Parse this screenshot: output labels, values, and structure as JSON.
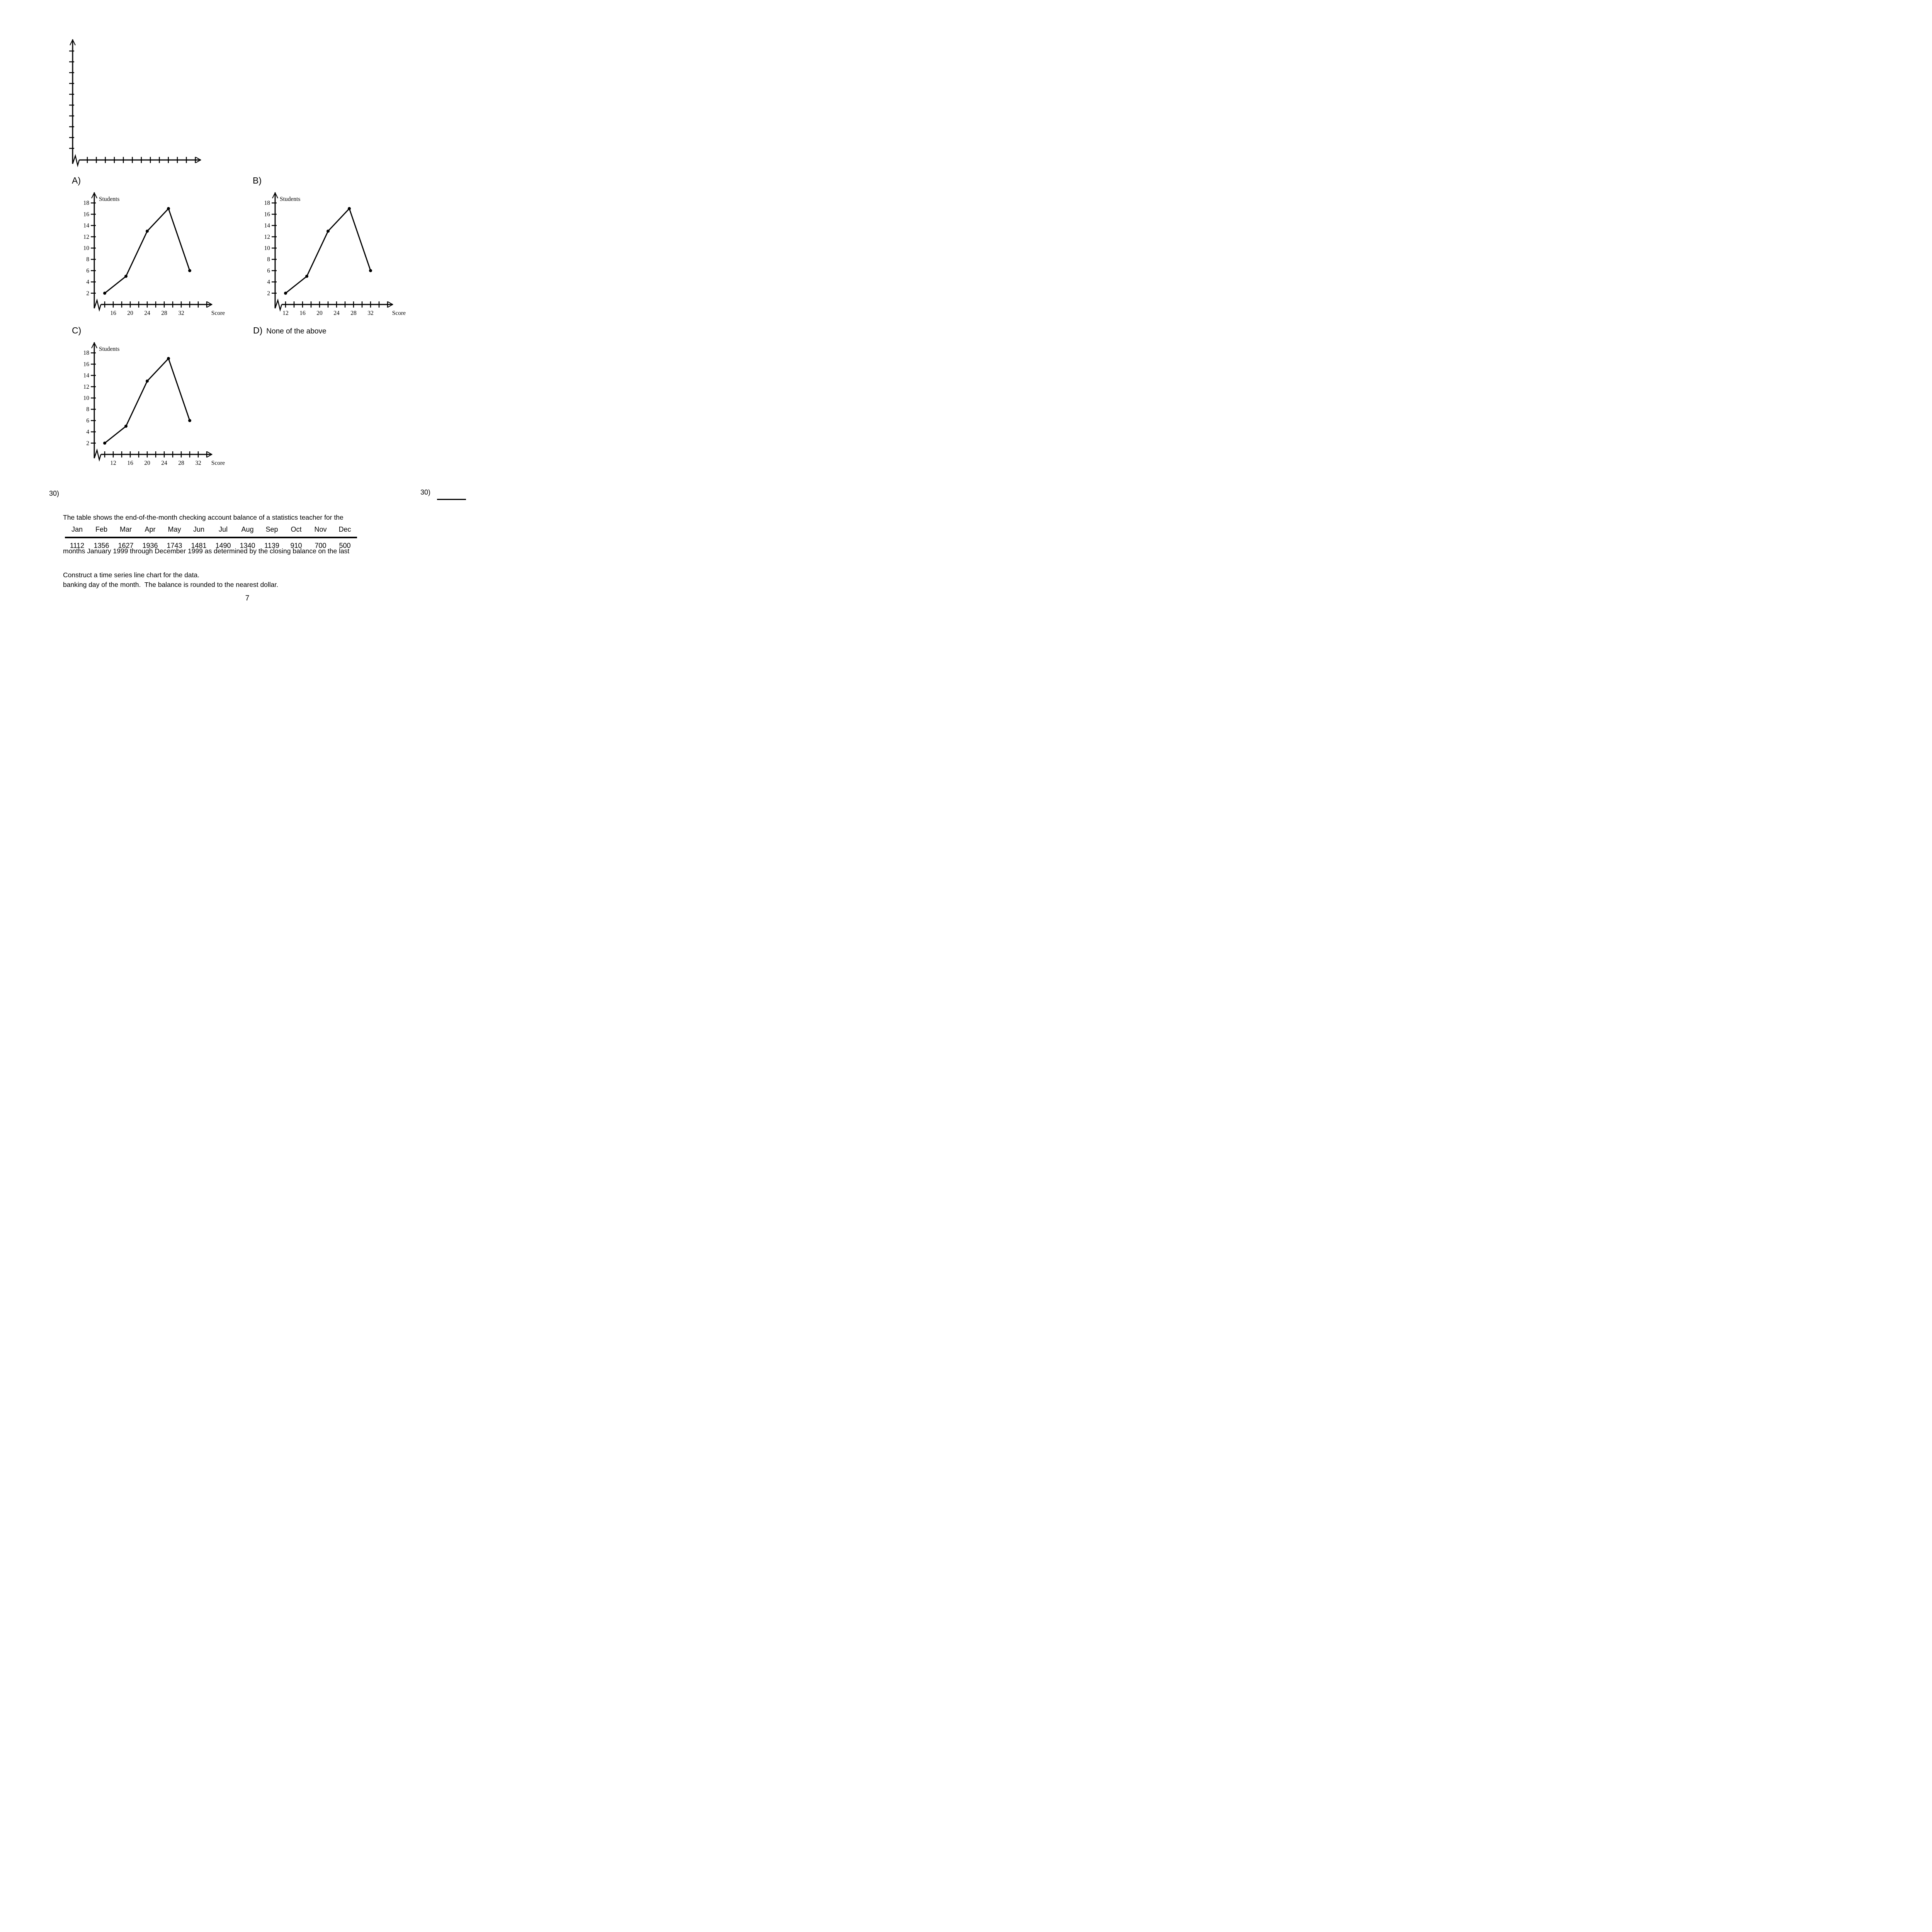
{
  "page_number": "7",
  "options": {
    "a_label": "A)",
    "b_label": "B)",
    "c_label": "C)",
    "d_label": "D)",
    "d_text": "None of the above"
  },
  "question": {
    "number": "30)",
    "answer_slot_number": "30)",
    "lines": [
      "The table shows the end-of-the-month checking account balance of a statistics teacher for the",
      "months January 1999 through December 1999 as determined by the closing balance on the last",
      "banking day of the month.  The balance is rounded to the nearest dollar."
    ],
    "instruction": "Construct a time series line chart for the data."
  },
  "balance_table": {
    "months": [
      "Jan",
      "Feb",
      "Mar",
      "Apr",
      "May",
      "Jun",
      "Jul",
      "Aug",
      "Sep",
      "Oct",
      "Nov",
      "Dec"
    ],
    "balances": [
      "1112",
      "1356",
      "1627",
      "1936",
      "1743",
      "1481",
      "1490",
      "1340",
      "1139",
      "910",
      "700",
      "500"
    ]
  },
  "chart_data": [
    {
      "type": "line",
      "id": "blank-axes",
      "x": [],
      "y": [],
      "x_axis_tick_count": 13,
      "y_axis_tick_count": 10
    },
    {
      "type": "line",
      "id": "option-A",
      "ylabel": "Students",
      "xlabel": "Score",
      "x": [
        14,
        19,
        24,
        29,
        34
      ],
      "y": [
        2,
        5,
        13,
        17,
        6
      ],
      "x_axis_first_tick": 14,
      "x_axis_tick_step": 2,
      "x_axis_tick_count": 13,
      "x_axis_labels": [
        16,
        20,
        24,
        28,
        32
      ],
      "y_axis_labels": [
        2,
        4,
        6,
        8,
        10,
        12,
        14,
        16,
        18
      ],
      "ylim": [
        0,
        19
      ]
    },
    {
      "type": "line",
      "id": "option-B",
      "ylabel": "Students",
      "xlabel": "Score",
      "x": [
        12,
        17,
        22,
        27,
        32
      ],
      "y": [
        2,
        5,
        13,
        17,
        6
      ],
      "x_axis_first_tick": 12,
      "x_axis_tick_step": 2,
      "x_axis_tick_count": 13,
      "x_axis_labels": [
        12,
        16,
        20,
        24,
        28,
        32
      ],
      "y_axis_labels": [
        2,
        4,
        6,
        8,
        10,
        12,
        14,
        16,
        18
      ],
      "ylim": [
        0,
        19
      ]
    },
    {
      "type": "line",
      "id": "option-C",
      "ylabel": "Students",
      "xlabel": "Score",
      "x": [
        10,
        15,
        20,
        25,
        30
      ],
      "y": [
        2,
        5,
        13,
        17,
        6
      ],
      "x_axis_first_tick": 10,
      "x_axis_tick_step": 2,
      "x_axis_tick_count": 13,
      "x_axis_labels": [
        12,
        16,
        20,
        24,
        28,
        32
      ],
      "y_axis_labels": [
        2,
        4,
        6,
        8,
        10,
        12,
        14,
        16,
        18
      ],
      "ylim": [
        0,
        19
      ]
    },
    {
      "type": "table",
      "id": "balance-by-month",
      "categories": [
        "Jan",
        "Feb",
        "Mar",
        "Apr",
        "May",
        "Jun",
        "Jul",
        "Aug",
        "Sep",
        "Oct",
        "Nov",
        "Dec"
      ],
      "values": [
        1112,
        1356,
        1627,
        1936,
        1743,
        1481,
        1490,
        1340,
        1139,
        910,
        700,
        500
      ]
    }
  ]
}
